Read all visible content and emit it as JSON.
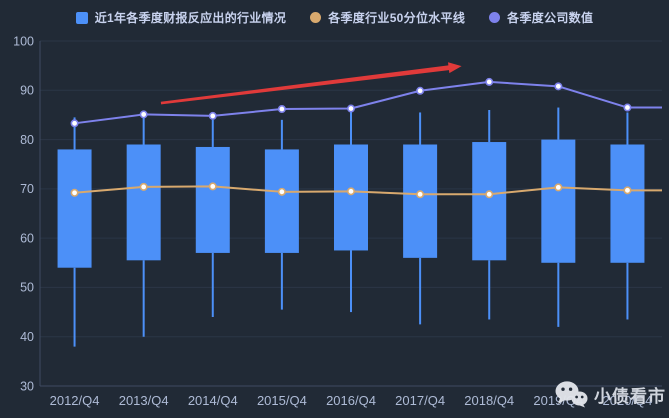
{
  "legend": {
    "items": [
      {
        "label": "近1年各季度财报反应出的行业情况",
        "color": "#4c90f8",
        "shape": "square"
      },
      {
        "label": "各季度行业50分位水平线",
        "color": "#d8a96e",
        "shape": "circle"
      },
      {
        "label": "各季度公司数值",
        "color": "#7e82ec",
        "shape": "circle"
      }
    ]
  },
  "watermark": {
    "text": "小债看市"
  },
  "colors": {
    "background": "#212a36",
    "grid": "#2b3647",
    "axis": "#3e4b61",
    "axis_text": "#aebbd6",
    "legend_text": "#c8d2ee",
    "candle": "#4c90f8",
    "median_line": "#d8a96e",
    "company_line": "#7e82ec",
    "marker_fill": "#ffffff",
    "arrow": "#e03a3a"
  },
  "chart_data": {
    "type": "candlestick",
    "title": "",
    "xlabel": "",
    "ylabel": "",
    "ylim": [
      30,
      100
    ],
    "yticks": [
      30,
      40,
      50,
      60,
      70,
      80,
      90,
      100
    ],
    "grid": true,
    "legend_position": "top",
    "categories": [
      "2012/Q4",
      "2013/Q4",
      "2014/Q4",
      "2015/Q4",
      "2016/Q4",
      "2017/Q4",
      "2018/Q4",
      "2019/Q4",
      "2020/Q4"
    ],
    "series": [
      {
        "name": "近1年各季度财报反应出的行业情况",
        "type": "box",
        "color": "#4c90f8",
        "boxes": [
          {
            "whisker_low": 38.0,
            "box_low": 54.0,
            "box_high": 78.0,
            "whisker_high": 84.5
          },
          {
            "whisker_low": 40.0,
            "box_low": 55.5,
            "box_high": 79.0,
            "whisker_high": 85.5
          },
          {
            "whisker_low": 44.0,
            "box_low": 57.0,
            "box_high": 78.5,
            "whisker_high": 84.0
          },
          {
            "whisker_low": 45.5,
            "box_low": 57.0,
            "box_high": 78.0,
            "whisker_high": 84.0
          },
          {
            "whisker_low": 45.0,
            "box_low": 57.5,
            "box_high": 79.0,
            "whisker_high": 86.0
          },
          {
            "whisker_low": 42.5,
            "box_low": 56.0,
            "box_high": 79.0,
            "whisker_high": 85.5
          },
          {
            "whisker_low": 43.5,
            "box_low": 55.5,
            "box_high": 79.5,
            "whisker_high": 86.0
          },
          {
            "whisker_low": 42.0,
            "box_low": 55.0,
            "box_high": 80.0,
            "whisker_high": 86.5
          },
          {
            "whisker_low": 43.5,
            "box_low": 55.0,
            "box_high": 79.0,
            "whisker_high": 85.5
          }
        ]
      },
      {
        "name": "各季度行业50分位水平线",
        "type": "line",
        "color": "#d8a96e",
        "values": [
          69.2,
          70.4,
          70.5,
          69.4,
          69.5,
          68.9,
          68.9,
          70.3,
          69.7
        ],
        "extend_right": true
      },
      {
        "name": "各季度公司数值",
        "type": "line",
        "color": "#7e82ec",
        "values": [
          83.3,
          85.1,
          84.8,
          86.2,
          86.3,
          89.9,
          91.7,
          90.8,
          86.5
        ],
        "extend_right": true
      }
    ],
    "annotation": {
      "type": "arrow",
      "color": "#e03a3a",
      "from": {
        "x_index": 1.25,
        "y": 87.4
      },
      "to": {
        "x_index": 5.6,
        "y": 94.9
      }
    }
  }
}
